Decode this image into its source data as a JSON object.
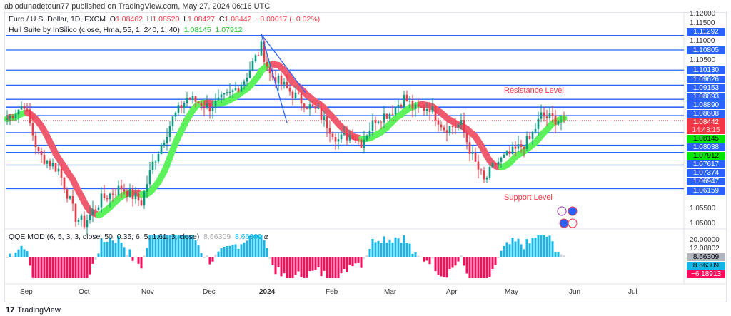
{
  "publisher": "abiodunadetoun77 published on TradingView.com, May 27, 2024 06:16 UTC",
  "symbol": {
    "name": "Euro / U.S. Dollar, 1D, FXCM",
    "o_label": "O",
    "o": "1.08462",
    "h_label": "H",
    "h": "1.08520",
    "l_label": "L",
    "l": "1.08427",
    "c_label": "C",
    "c": "1.08442",
    "change": "−0.00017 (−0.02%)"
  },
  "hull": {
    "label": "Hull Suite by InSilico (close, Hma, 55, 1, 240, 1, 40)",
    "v1": "1.08145",
    "v2": "1.07912"
  },
  "qqe": {
    "label": "QQE MOD (6, 5, 3, 3, close, 50, 0.35, 6, 5, 1.61, 3, close)",
    "v1": "8.66309",
    "v2": "8.66309"
  },
  "annotations": {
    "resistance": "Resistance Level",
    "support": "Support Level"
  },
  "price_axis": [
    "1.12000",
    "1.11500",
    "1.11000",
    "1.10500",
    "1.05500",
    "1.05000"
  ],
  "levels": [
    "1.11292",
    "1.10805",
    "1.10130",
    "1.09626",
    "1.09153",
    "1.08893",
    "1.08890",
    "1.08608",
    "1.08038",
    "1.07617",
    "1.07374",
    "1.06947",
    "1.06159"
  ],
  "current_price": {
    "value": "1.08442",
    "countdown": "14:43:15"
  },
  "hull_tags": {
    "upper": "1.08145",
    "lower": "1.07912"
  },
  "qqe_axis": {
    "top": "20.00000",
    "second": "12.08802",
    "gray": "8.66309",
    "cyan": "8.66309",
    "neg": "−6.18913"
  },
  "time_axis": [
    "Sep",
    "Oct",
    "Nov",
    "Dec",
    "2024",
    "Feb",
    "Mar",
    "Apr",
    "May",
    "Jun",
    "Jul"
  ],
  "footer": "TradingView",
  "colors": {
    "up": "#089981",
    "down": "#f23645",
    "level": "#2962ff",
    "hull_up": "#5cf25c",
    "hull_down": "#f05a6e",
    "qqe_up": "#13b6e6",
    "qqe_down": "#ff0a5a"
  },
  "chart_data": {
    "type": "candlestick",
    "anchors": [
      [
        0,
        1.085
      ],
      [
        6,
        1.09
      ],
      [
        11,
        1.073
      ],
      [
        18,
        1.068
      ],
      [
        24,
        1.052
      ],
      [
        27,
        1.05
      ],
      [
        33,
        1.058
      ],
      [
        40,
        1.062
      ],
      [
        47,
        1.057
      ],
      [
        51,
        1.07
      ],
      [
        58,
        1.085
      ],
      [
        63,
        1.092
      ],
      [
        71,
        1.089
      ],
      [
        78,
        1.093
      ],
      [
        83,
        1.098
      ],
      [
        89,
        1.109
      ],
      [
        92,
        1.1
      ],
      [
        98,
        1.095
      ],
      [
        103,
        1.091
      ],
      [
        109,
        1.087
      ],
      [
        116,
        1.078
      ],
      [
        121,
        1.08
      ],
      [
        124,
        1.077
      ],
      [
        129,
        1.085
      ],
      [
        134,
        1.087
      ],
      [
        139,
        1.092
      ],
      [
        143,
        1.088
      ],
      [
        148,
        1.089
      ],
      [
        153,
        1.082
      ],
      [
        159,
        1.083
      ],
      [
        163,
        1.072
      ],
      [
        167,
        1.064
      ],
      [
        171,
        1.07
      ],
      [
        176,
        1.073
      ],
      [
        183,
        1.078
      ],
      [
        187,
        1.086
      ],
      [
        191,
        1.085
      ],
      [
        195,
        1.0844
      ]
    ]
  }
}
